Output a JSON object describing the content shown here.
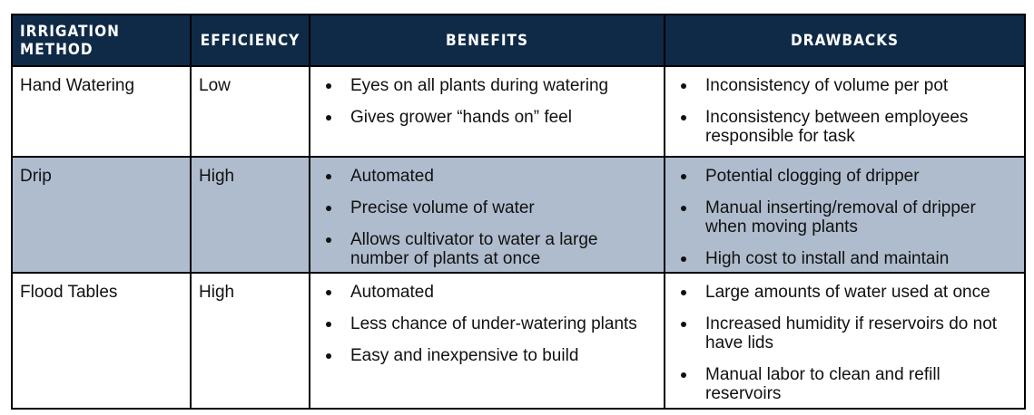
{
  "headers": [
    "IRRIGATION METHOD",
    "EFFICIENCY",
    "BENEFITS",
    "DRAWBACKS"
  ],
  "rows": [
    {
      "method": "Hand Watering",
      "efficiency": "Low",
      "benefits": [
        "Eyes on all plants during watering",
        "Gives grower “hands on” feel"
      ],
      "drawbacks": [
        "Inconsistency of volume per pot",
        "Inconsistency between employees responsible for task"
      ]
    },
    {
      "method": "Drip",
      "efficiency": "High",
      "benefits": [
        "Automated",
        "Precise volume of water",
        "Allows cultivator to water a large number of plants at once"
      ],
      "drawbacks": [
        "Potential clogging of dripper",
        "Manual inserting/removal of dripper when moving plants",
        "High cost to install and maintain"
      ]
    },
    {
      "method": "Flood Tables",
      "efficiency": "High",
      "benefits": [
        "Automated",
        "Less chance of under-watering plants",
        "Easy and inexpensive to build"
      ],
      "drawbacks": [
        "Large amounts of water used at once",
        "Increased humidity if reservoirs do not have lids",
        "Manual labor to clean and refill reservoirs"
      ]
    }
  ]
}
